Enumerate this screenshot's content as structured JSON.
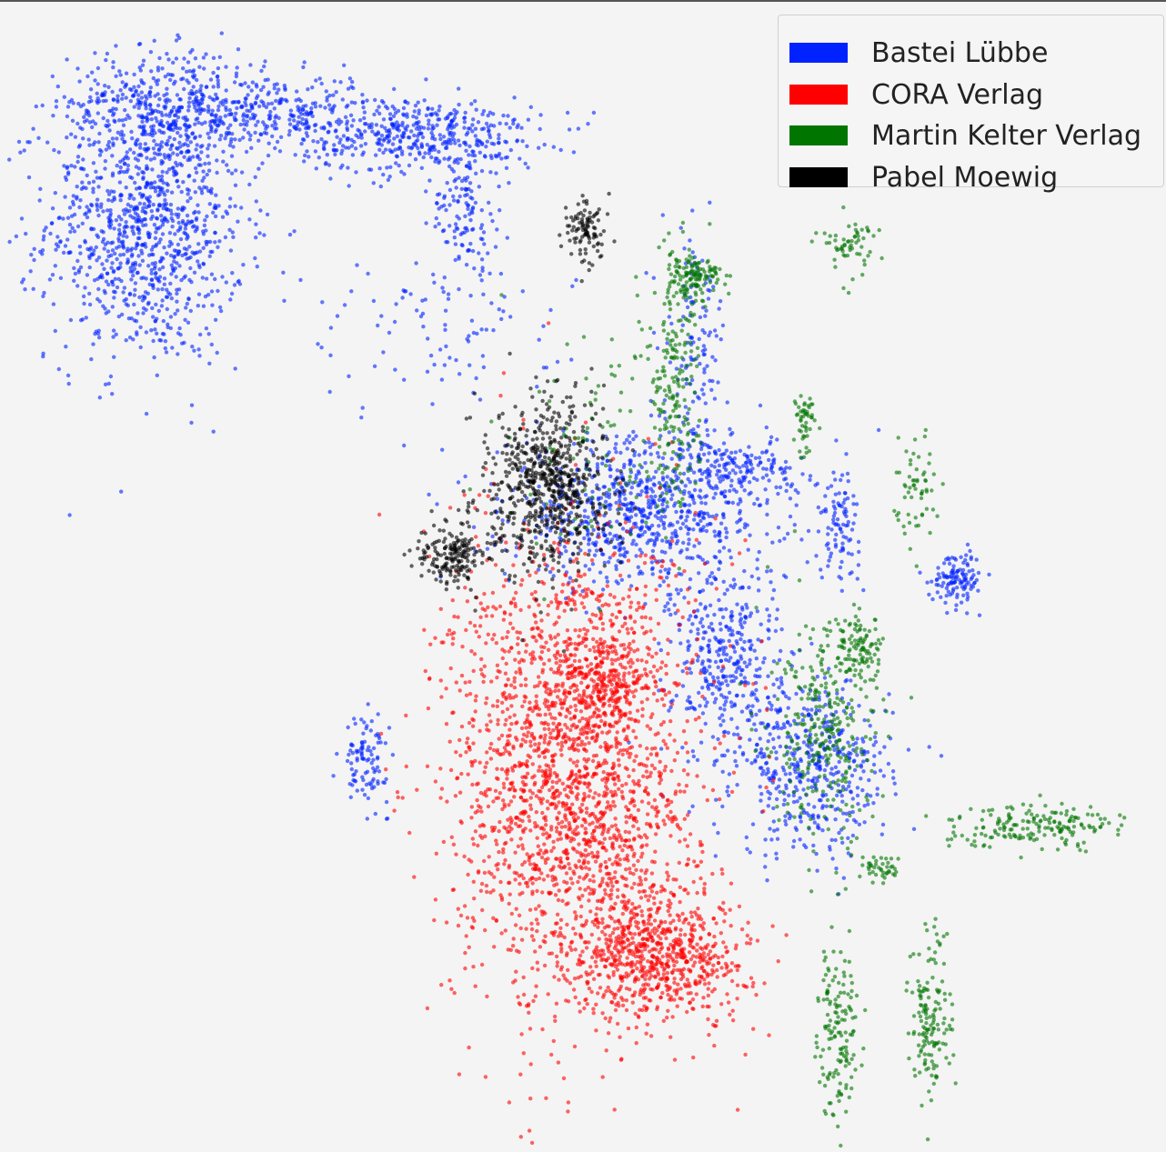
{
  "chart_data": {
    "type": "scatter",
    "title": "",
    "xlabel": "",
    "ylabel": "",
    "grid": false,
    "axes_visible": false,
    "legend_placement": "top-right",
    "xlim": [
      0,
      100
    ],
    "ylim": [
      0,
      100
    ],
    "series": [
      {
        "name": "Bastei Lübbe",
        "color": "#0022ff",
        "clusters": [
          {
            "center": [
              10,
              83
            ],
            "spread": [
              4.5,
              6.5
            ],
            "count": 1100
          },
          {
            "center": [
              12,
              94
            ],
            "spread": [
              4.5,
              2.5
            ],
            "count": 350
          },
          {
            "center": [
              22,
              93
            ],
            "spread": [
              4,
              1.8
            ],
            "count": 250
          },
          {
            "center": [
              35,
              91
            ],
            "spread": [
              5.5,
              1.8
            ],
            "count": 450
          },
          {
            "center": [
              39,
              84
            ],
            "spread": [
              1.5,
              3
            ],
            "count": 120
          },
          {
            "center": [
              55,
              56
            ],
            "spread": [
              6,
              3.5
            ],
            "count": 800
          },
          {
            "center": [
              60,
              72
            ],
            "spread": [
              1.5,
              5
            ],
            "count": 120
          },
          {
            "center": [
              64,
              60
            ],
            "spread": [
              2.5,
              1.2
            ],
            "count": 150
          },
          {
            "center": [
              63,
              42
            ],
            "spread": [
              2.5,
              5
            ],
            "count": 400
          },
          {
            "center": [
              71,
              32
            ],
            "spread": [
              3.5,
              4
            ],
            "count": 450
          },
          {
            "center": [
              73,
              55
            ],
            "spread": [
              1,
              2.5
            ],
            "count": 100
          },
          {
            "center": [
              84,
              50
            ],
            "spread": [
              1.2,
              1.2
            ],
            "count": 120
          },
          {
            "center": [
              30,
              33
            ],
            "spread": [
              1,
              2
            ],
            "count": 100
          },
          {
            "center": [
              36,
              73
            ],
            "spread": [
              6,
              4
            ],
            "count": 100
          }
        ]
      },
      {
        "name": "CORA Verlag",
        "color": "#ff0000",
        "clusters": [
          {
            "center": [
              49,
              32
            ],
            "spread": [
              5.5,
              11
            ],
            "count": 2300
          },
          {
            "center": [
              57,
              15
            ],
            "spread": [
              4,
              3
            ],
            "count": 700
          },
          {
            "center": [
              52,
              40
            ],
            "spread": [
              2,
              2
            ],
            "count": 200
          }
        ]
      },
      {
        "name": "Martin Kelter Verlag",
        "color": "#007500",
        "clusters": [
          {
            "center": [
              60,
              78
            ],
            "spread": [
              1.2,
              1
            ],
            "count": 120
          },
          {
            "center": [
              58,
              68
            ],
            "spread": [
              1.2,
              6
            ],
            "count": 200
          },
          {
            "center": [
              72,
              35
            ],
            "spread": [
              2.5,
              5
            ],
            "count": 300
          },
          {
            "center": [
              75,
              43
            ],
            "spread": [
              1.2,
              1.6
            ],
            "count": 100
          },
          {
            "center": [
              91,
              27
            ],
            "spread": [
              4,
              1
            ],
            "count": 180
          },
          {
            "center": [
              73,
              8
            ],
            "spread": [
              0.9,
              4
            ],
            "count": 150
          },
          {
            "center": [
              81.5,
              9
            ],
            "spread": [
              1,
              4
            ],
            "count": 150
          },
          {
            "center": [
              80,
              58
            ],
            "spread": [
              0.9,
              3
            ],
            "count": 60
          },
          {
            "center": [
              70,
              64
            ],
            "spread": [
              0.6,
              1.2
            ],
            "count": 50
          },
          {
            "center": [
              74,
              81
            ],
            "spread": [
              1.2,
              1.5
            ],
            "count": 60
          },
          {
            "center": [
              77,
              23
            ],
            "spread": [
              0.8,
              0.6
            ],
            "count": 40
          },
          {
            "center": [
              52,
              62
            ],
            "spread": [
              4,
              6
            ],
            "count": 100
          }
        ]
      },
      {
        "name": "Pabel Moewig",
        "color": "#000000",
        "clusters": [
          {
            "center": [
              47,
              59
            ],
            "spread": [
              2.5,
              4
            ],
            "count": 600
          },
          {
            "center": [
              38,
              52
            ],
            "spread": [
              1.5,
              1.4
            ],
            "count": 180
          },
          {
            "center": [
              50,
              82
            ],
            "spread": [
              1,
              1.6
            ],
            "count": 100
          },
          {
            "center": [
              44,
              56
            ],
            "spread": [
              3,
              3
            ],
            "count": 80
          }
        ]
      }
    ]
  }
}
